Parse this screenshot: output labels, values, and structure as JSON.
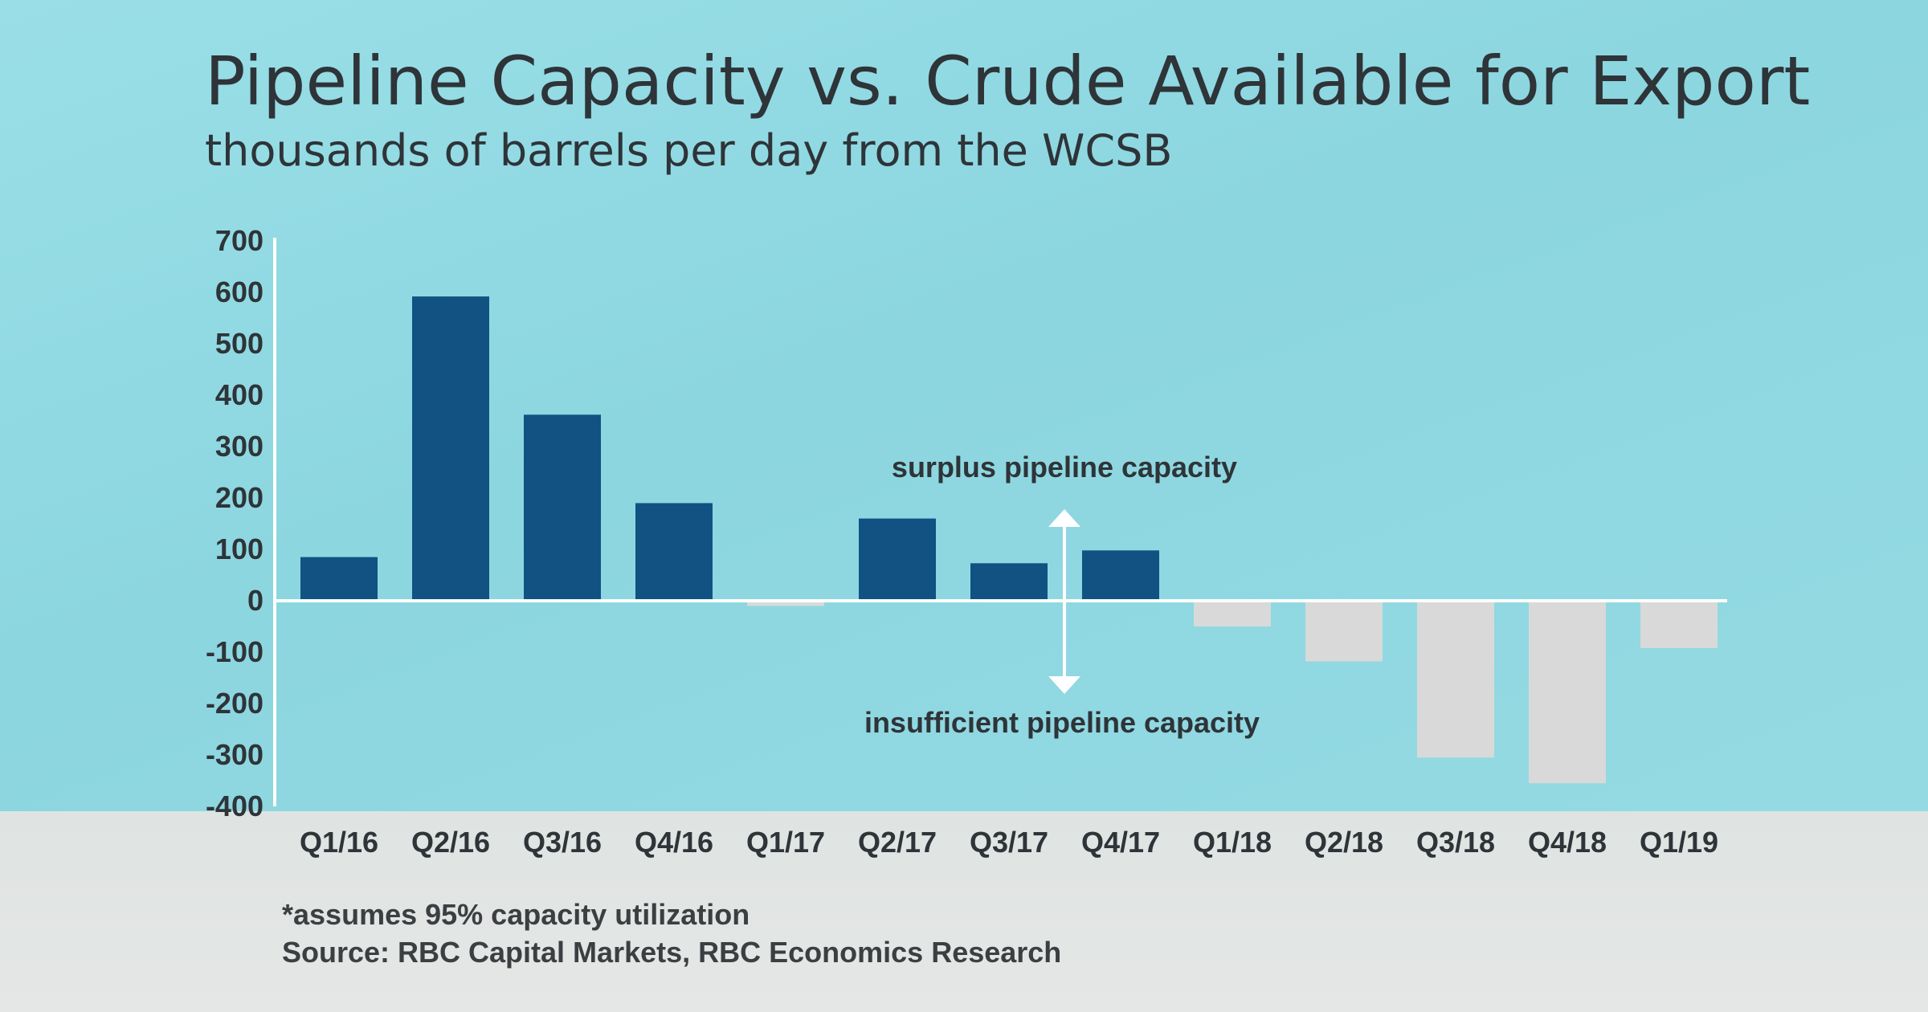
{
  "title": "Pipeline Capacity vs. Crude Available for Export",
  "subtitle": "thousands of barrels per day from the WCSB",
  "footnotes": {
    "assumption": "*assumes 95% capacity utilization",
    "source": "Source: RBC Capital Markets, RBC Economics Research"
  },
  "colors": {
    "positive_bar": "#115283",
    "negative_bar": "#d9d9d9",
    "axis": "#ffffff",
    "text": "#2e3438"
  },
  "chart_data": {
    "type": "bar",
    "title": "Pipeline Capacity vs. Crude Available for Export",
    "subtitle": "thousands of barrels per day from the WCSB",
    "xlabel": "",
    "ylabel": "",
    "ylim": [
      -400,
      700
    ],
    "yticks": [
      "700",
      "600",
      "500",
      "400",
      "300",
      "200",
      "100",
      "0",
      "-100",
      "-200",
      "-300",
      "-400"
    ],
    "ytick_values": [
      700,
      600,
      500,
      400,
      300,
      200,
      100,
      0,
      -100,
      -200,
      -300,
      -400
    ],
    "grid": false,
    "categories": [
      "Q1/16",
      "Q2/16",
      "Q3/16",
      "Q4/16",
      "Q1/17",
      "Q2/17",
      "Q3/17",
      "Q4/17",
      "Q1/18",
      "Q2/18",
      "Q3/18",
      "Q4/18",
      "Q1/19"
    ],
    "values": [
      85,
      592,
      362,
      190,
      -10,
      160,
      73,
      98,
      -50,
      -118,
      -305,
      -355,
      -92
    ],
    "annotations": {
      "surplus": "surplus pipeline capacity",
      "insufficient": "insufficient pipeline capacity"
    }
  }
}
